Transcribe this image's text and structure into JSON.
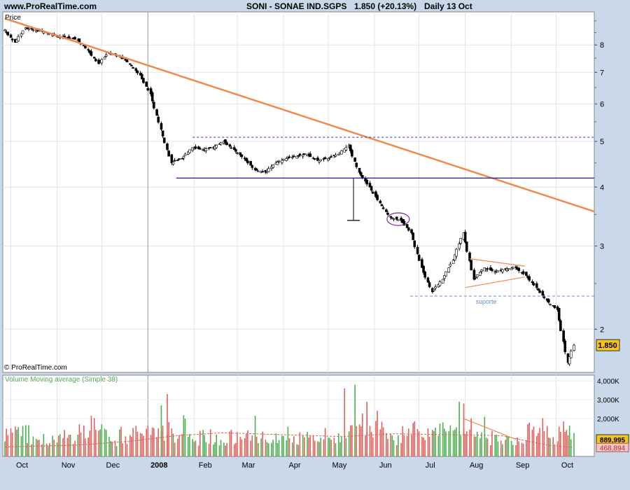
{
  "header": {
    "site": "www.ProRealTime.com",
    "symbol": "SONI - SONAE IND.SGPS",
    "price": "1.850 (+20.13%)",
    "period": "Daily  13 Oct"
  },
  "colors": {
    "background": "#c9d9ea",
    "panel": "#ffffff",
    "trendline": "#f08a4b",
    "support_dotted": "#2e2ec8",
    "support_solid": "#1c1c9a",
    "suporte_line": "#5a8fd6",
    "volume_up": "#4caf50",
    "volume_down": "#e0605a",
    "price_badge": "#f5c518",
    "ellipse": "#7a2a9a"
  },
  "chart_data": [
    {
      "type": "candlestick",
      "title": "SONI - SONAE IND.SGPS",
      "ylabel": "Price",
      "y_scale": "log",
      "ylim": [
        1.62,
        9.4
      ],
      "y_ticks": [
        "8",
        "7",
        "6",
        "5",
        "4",
        "3",
        "2"
      ],
      "x_tick_labels": [
        "Oct",
        "Nov",
        "Dec",
        "2008",
        "Feb",
        "Mar",
        "Apr",
        "May",
        "Jun",
        "Jul",
        "Aug",
        "Sep",
        "Oct"
      ],
      "x_range": [
        "2007-09-27",
        "2008-10-13"
      ],
      "last_price_label": "1.850",
      "watermark": "© ProRealTime.com",
      "annotations": [
        {
          "type": "trendline",
          "from": [
            "2007-09-27",
            9.1
          ],
          "to": [
            "2008-10-13",
            3.55
          ]
        },
        {
          "type": "hline_dotted",
          "value": 5.1,
          "from": "2008-01-31"
        },
        {
          "type": "hline",
          "value": 4.18,
          "from": "2008-01-20"
        },
        {
          "type": "hline_dashed",
          "value": 2.35,
          "from": "2008-06-25",
          "label": "suporte"
        }
      ],
      "weekly_closes": [
        [
          "2007-09-27",
          8.6
        ],
        [
          "2007-10-04",
          8.1
        ],
        [
          "2007-10-11",
          8.7
        ],
        [
          "2007-10-18",
          8.6
        ],
        [
          "2007-10-25",
          8.5
        ],
        [
          "2007-11-01",
          8.35
        ],
        [
          "2007-11-08",
          8.3
        ],
        [
          "2007-11-15",
          8.2
        ],
        [
          "2007-11-22",
          7.8
        ],
        [
          "2007-11-29",
          7.3
        ],
        [
          "2007-12-06",
          7.7
        ],
        [
          "2007-12-13",
          7.6
        ],
        [
          "2007-12-20",
          7.3
        ],
        [
          "2007-12-27",
          6.9
        ],
        [
          "2008-01-03",
          6.3
        ],
        [
          "2008-01-10",
          5.3
        ],
        [
          "2008-01-17",
          4.5
        ],
        [
          "2008-01-24",
          4.6
        ],
        [
          "2008-01-31",
          4.85
        ],
        [
          "2008-02-07",
          4.8
        ],
        [
          "2008-02-14",
          4.85
        ],
        [
          "2008-02-21",
          5.0
        ],
        [
          "2008-02-28",
          4.8
        ],
        [
          "2008-03-06",
          4.6
        ],
        [
          "2008-03-13",
          4.35
        ],
        [
          "2008-03-20",
          4.3
        ],
        [
          "2008-03-27",
          4.5
        ],
        [
          "2008-04-03",
          4.6
        ],
        [
          "2008-04-10",
          4.65
        ],
        [
          "2008-04-17",
          4.7
        ],
        [
          "2008-04-24",
          4.55
        ],
        [
          "2008-05-01",
          4.6
        ],
        [
          "2008-05-08",
          4.7
        ],
        [
          "2008-05-15",
          4.9
        ],
        [
          "2008-05-22",
          4.3
        ],
        [
          "2008-05-29",
          4.0
        ],
        [
          "2008-06-05",
          3.7
        ],
        [
          "2008-06-12",
          3.45
        ],
        [
          "2008-06-19",
          3.4
        ],
        [
          "2008-06-26",
          3.2
        ],
        [
          "2008-07-03",
          2.7
        ],
        [
          "2008-07-10",
          2.4
        ],
        [
          "2008-07-17",
          2.55
        ],
        [
          "2008-07-24",
          2.8
        ],
        [
          "2008-07-31",
          3.2
        ],
        [
          "2008-08-07",
          2.55
        ],
        [
          "2008-08-14",
          2.7
        ],
        [
          "2008-08-21",
          2.65
        ],
        [
          "2008-08-28",
          2.68
        ],
        [
          "2008-09-04",
          2.7
        ],
        [
          "2008-09-11",
          2.6
        ],
        [
          "2008-09-18",
          2.45
        ],
        [
          "2008-09-25",
          2.3
        ],
        [
          "2008-10-02",
          2.2
        ],
        [
          "2008-10-09",
          1.7
        ],
        [
          "2008-10-13",
          1.85
        ]
      ]
    },
    {
      "type": "bar",
      "title": "Volume Moving average (Simple 38)",
      "y_ticks": [
        "4,000K",
        "3,000K",
        "2,000K"
      ],
      "ylim": [
        0,
        4300
      ],
      "last_volume_label": "889,995",
      "moving_average_label": "468,894",
      "notable_spikes": [
        [
          "2008-01-14",
          3300
        ],
        [
          "2008-01-10",
          2700
        ],
        [
          "2008-05-12",
          3600
        ],
        [
          "2008-05-19",
          3800
        ],
        [
          "2008-05-27",
          2900
        ],
        [
          "2008-07-28",
          2900
        ],
        [
          "2008-07-31",
          2800
        ],
        [
          "2008-03-13",
          2150
        ],
        [
          "2008-10-08",
          1400
        ]
      ],
      "moving_average": [
        [
          "2007-09-27",
          500
        ],
        [
          "2007-11-15",
          600
        ],
        [
          "2007-12-20",
          800
        ],
        [
          "2008-01-20",
          1100
        ],
        [
          "2008-02-20",
          1250
        ],
        [
          "2008-04-01",
          1150
        ],
        [
          "2008-05-10",
          1050
        ],
        [
          "2008-06-15",
          1200
        ],
        [
          "2008-07-20",
          1150
        ],
        [
          "2008-08-25",
          1100
        ],
        [
          "2008-09-25",
          600
        ],
        [
          "2008-10-13",
          470
        ]
      ]
    }
  ]
}
